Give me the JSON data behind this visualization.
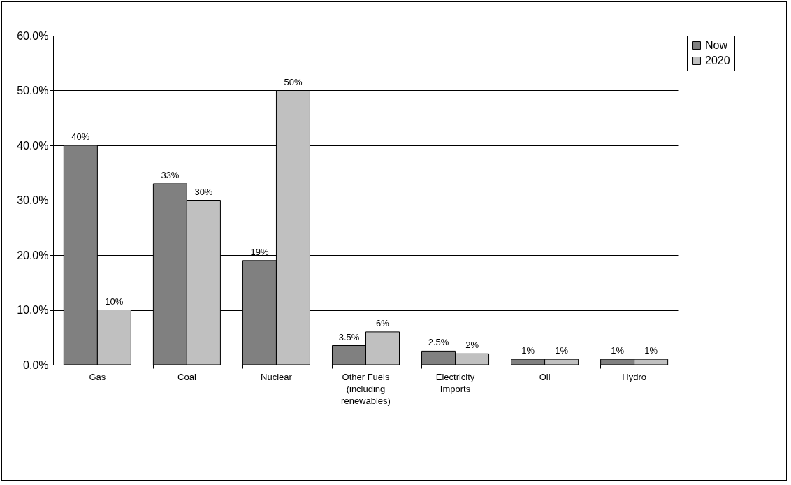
{
  "chart_data": {
    "type": "bar",
    "categories": [
      "Gas",
      "Coal",
      "Nuclear",
      "Other Fuels (including renewables)",
      "Electricity Imports",
      "Oil",
      "Hydro"
    ],
    "series": [
      {
        "name": "Now",
        "color": "#808080",
        "values": [
          40,
          33,
          19,
          3.5,
          2.5,
          1,
          1
        ],
        "value_labels": [
          "40%",
          "33%",
          "19%",
          "3.5%",
          "2.5%",
          "1%",
          "1%"
        ]
      },
      {
        "name": "2020",
        "color": "#c0c0c0",
        "values": [
          10,
          30,
          50,
          6,
          2,
          1,
          1
        ],
        "value_labels": [
          "10%",
          "30%",
          "50%",
          "6%",
          "2%",
          "1%",
          "1%"
        ]
      }
    ],
    "ylim": [
      0,
      60
    ],
    "yticks": [
      {
        "value": 0,
        "label": "0.0%"
      },
      {
        "value": 10,
        "label": "10.0%"
      },
      {
        "value": 20,
        "label": "20.0%"
      },
      {
        "value": 30,
        "label": "30.0%"
      },
      {
        "value": 40,
        "label": "40.0%"
      },
      {
        "value": 50,
        "label": "50.0%"
      },
      {
        "value": 60,
        "label": "60.0%"
      }
    ],
    "grid": "y",
    "legend": "right"
  }
}
